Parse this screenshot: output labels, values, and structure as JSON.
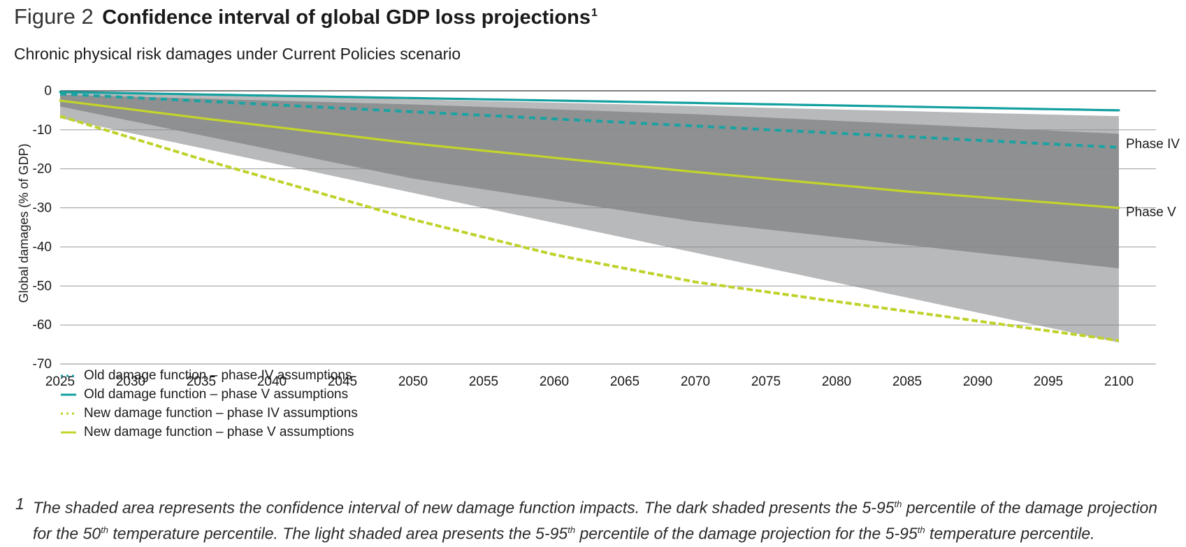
{
  "figure": {
    "label": "Figure 2",
    "title": "Confidence interval of global GDP loss projections",
    "title_note_marker": "1",
    "subtitle": "Chronic physical risk damages under Current Policies scenario"
  },
  "chart_data": {
    "type": "line",
    "title": "Confidence interval of global GDP loss projections",
    "subtitle": "Chronic physical risk damages under Current Policies scenario",
    "xlabel": "",
    "ylabel": "Global damages (% of GDP)",
    "xlim": [
      2025,
      2100
    ],
    "ylim": [
      -70,
      0
    ],
    "x_ticks": [
      2025,
      2030,
      2035,
      2040,
      2045,
      2050,
      2055,
      2060,
      2065,
      2070,
      2075,
      2080,
      2085,
      2090,
      2095,
      2100
    ],
    "y_ticks": [
      0,
      -10,
      -20,
      -30,
      -40,
      -50,
      -60,
      -70
    ],
    "grid": "horizontal",
    "bands": [
      {
        "name": "5-95th percentile of damage projection for 5-95th temperature percentile",
        "shade": "light",
        "color": "#b8b9bb",
        "x": [
          2025,
          2100
        ],
        "upper": [
          0,
          -6.5
        ],
        "lower": [
          -7,
          -64.5
        ]
      },
      {
        "name": "5-95th percentile of damage projection for 50th temperature percentile",
        "shade": "dark",
        "color": "#8e9091",
        "x": [
          2025,
          2050,
          2070,
          2100
        ],
        "upper": [
          -1,
          -3.5,
          -6,
          -11
        ],
        "lower": [
          -4,
          -22.5,
          -33.5,
          -45.5
        ]
      }
    ],
    "series": [
      {
        "name": "Old damage function – phase IV assumptions",
        "style": "dotted",
        "color": "#1aa3a3",
        "x": [
          2025,
          2100
        ],
        "values": [
          -0.8,
          -14.5
        ]
      },
      {
        "name": "Old damage function – phase V assumptions",
        "style": "solid",
        "color": "#13a09f",
        "x": [
          2025,
          2100
        ],
        "values": [
          -0.3,
          -5
        ]
      },
      {
        "name": "New damage function – phase IV assumptions",
        "style": "dotted",
        "color": "#bfd22b",
        "x": [
          2025,
          2035,
          2050,
          2060,
          2070,
          2100
        ],
        "values": [
          -6.5,
          -17.5,
          -33,
          -42,
          -49,
          -64
        ]
      },
      {
        "name": "New damage function – phase V assumptions",
        "style": "solid",
        "color": "#c3d52a",
        "x": [
          2025,
          2035,
          2050,
          2070,
          2085,
          2100
        ],
        "values": [
          -2.5,
          -7,
          -13.5,
          -20.8,
          -25.8,
          -30
        ]
      }
    ],
    "annotations": [
      {
        "text": "Phase IV",
        "x": 2100,
        "y": -14.5
      },
      {
        "text": "Phase V",
        "x": 2100,
        "y": -32
      }
    ]
  },
  "legend": [
    {
      "label": "Old damage function – phase IV assumptions",
      "style": "dotted",
      "color": "#1aa3a3"
    },
    {
      "label": "Old damage function – phase V assumptions",
      "style": "solid",
      "color": "#13a09f"
    },
    {
      "label": "New damage function – phase IV assumptions",
      "style": "dotted",
      "color": "#bfd22b"
    },
    {
      "label": "New damage function – phase V assumptions",
      "style": "solid",
      "color": "#c3d52a"
    }
  ],
  "footnote": {
    "number": "1",
    "line1_a": "The shaded area represents the confidence interval of new damage function impacts. The dark shaded presents the 5-95",
    "line1_sup": "th",
    "line1_b": " percentile of the damage projection",
    "line2_a": "for the 50",
    "line2_sup1": "th",
    "line2_b": " temperature percentile. The light shaded area presents the 5-95",
    "line2_sup2": "th",
    "line2_c": " percentile of the damage projection for the 5-95",
    "line2_sup3": "th",
    "line2_d": " temperature percentile."
  }
}
